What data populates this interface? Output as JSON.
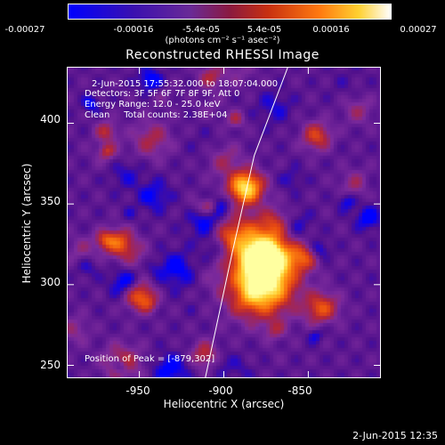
{
  "colorbar": {
    "ticks": [
      "-0.00027",
      "-0.00016",
      "-5.4e-05",
      "5.4e-05",
      "0.00016",
      "0.00027"
    ],
    "units_text": "(photons cm⁻² s⁻¹ asec⁻²)",
    "range": [
      -0.00027,
      0.00027
    ]
  },
  "chart_data": {
    "type": "heatmap",
    "title": "Reconstructed RHESSI Image",
    "xlabel": "Heliocentric X (arcsec)",
    "ylabel": "Heliocentric Y (arcsec)",
    "xlim": [
      -993,
      -807
    ],
    "ylim": [
      242,
      435
    ],
    "xticks": [
      "-950",
      "-900",
      "-850"
    ],
    "xtick_values": [
      -950,
      -900,
      -850
    ],
    "yticks": [
      "250",
      "300",
      "350",
      "400"
    ],
    "ytick_values": [
      250,
      300,
      350,
      400
    ],
    "annotations": {
      "time_range": "2-Jun-2015 17:55:32.000 to 18:07:04.000",
      "detectors": "Detectors: 3F 5F 6F 7F 8F 9F, Att 0",
      "energy_range": "Energy Range: 12.0 - 25.0 keV",
      "clean_counts": "Clean     Total counts: 2.38E+04",
      "peak": "Position of Peak = [-879,302]"
    },
    "sources": [
      {
        "x": -879,
        "y": 302,
        "amp": 1.0,
        "r": 13
      },
      {
        "x": -888,
        "y": 327,
        "amp": 0.65,
        "r": 10
      },
      {
        "x": -887,
        "y": 360,
        "amp": 0.75,
        "r": 7
      },
      {
        "x": -874,
        "y": 318,
        "amp": 0.55,
        "r": 9
      },
      {
        "x": -950,
        "y": 293,
        "amp": 0.45,
        "r": 6
      },
      {
        "x": -962,
        "y": 326,
        "amp": 0.4,
        "r": 6
      },
      {
        "x": -842,
        "y": 285,
        "amp": 0.4,
        "r": 7
      },
      {
        "x": -853,
        "y": 317,
        "amp": 0.35,
        "r": 6
      },
      {
        "x": -845,
        "y": 392,
        "amp": 0.35,
        "r": 6
      }
    ],
    "limb_line": {
      "x": [
        -911,
        -895,
        -882,
        -862
      ],
      "y": [
        242,
        320,
        380,
        435
      ]
    },
    "colormap": [
      "#0000ff",
      "#50108c",
      "#7c2a9c",
      "#b0243c",
      "#e84a10",
      "#ff8a10",
      "#ffd030",
      "#ffffa0"
    ]
  },
  "footer": {
    "timestamp": "2-Jun-2015 12:35"
  }
}
